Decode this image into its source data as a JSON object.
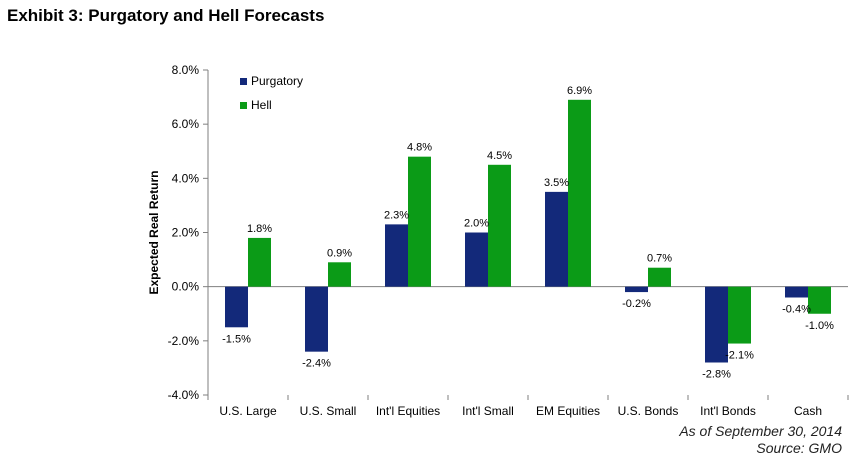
{
  "title": "Exhibit 3: Purgatory and Hell Forecasts",
  "footnote": {
    "date": "As of September 30, 2014",
    "source": "Source: GMO"
  },
  "colors": {
    "purgatory": "#13297a",
    "hell": "#0b9b17",
    "axis": "#7f7f7f"
  },
  "chart_data": {
    "type": "bar",
    "title": "Exhibit 3: Purgatory and Hell Forecasts",
    "xlabel": "",
    "ylabel": "Expected Real Return",
    "ylim": [
      -4,
      8
    ],
    "ytick_step": 2,
    "ytick_labels": [
      "-4.0%",
      "-2.0%",
      "0.0%",
      "2.0%",
      "4.0%",
      "6.0%",
      "8.0%"
    ],
    "grid": false,
    "legend_position": "top-left",
    "categories": [
      "U.S. Large",
      "U.S. Small",
      "Int'l Equities",
      "Int'l Small",
      "EM Equities",
      "U.S. Bonds",
      "Int'l Bonds",
      "Cash"
    ],
    "series": [
      {
        "name": "Purgatory",
        "values": [
          -1.5,
          -2.4,
          2.3,
          2.0,
          3.5,
          -0.2,
          -2.8,
          -0.4
        ],
        "labels": [
          "-1.5%",
          "-2.4%",
          "2.3%",
          "2.0%",
          "3.5%",
          "-0.2%",
          "-2.8%",
          "-0.4%"
        ]
      },
      {
        "name": "Hell",
        "values": [
          1.8,
          0.9,
          4.8,
          4.5,
          6.9,
          0.7,
          -2.1,
          -1.0
        ],
        "labels": [
          "1.8%",
          "0.9%",
          "4.8%",
          "4.5%",
          "6.9%",
          "0.7%",
          "-2.1%",
          "-1.0%"
        ]
      }
    ]
  }
}
